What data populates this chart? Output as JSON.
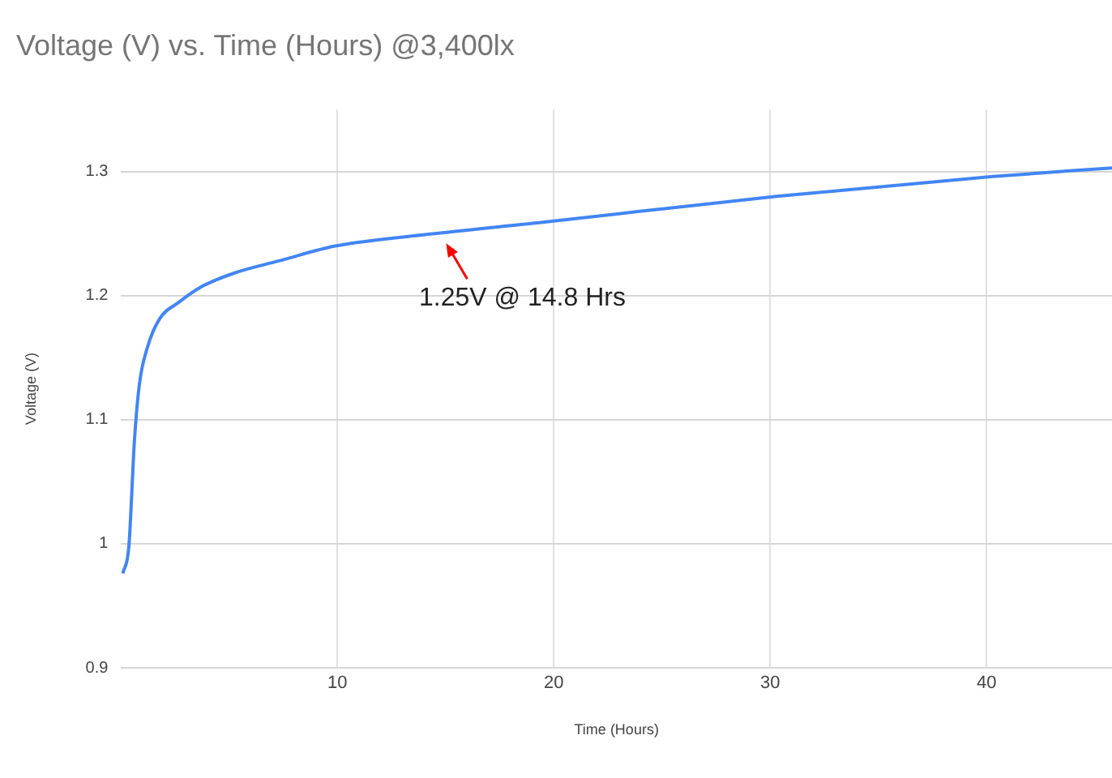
{
  "chart_data": {
    "type": "line",
    "title": "Voltage (V) vs. Time (Hours) @3,400lx",
    "xlabel": "Time (Hours)",
    "ylabel": "Voltage (V)",
    "x": [
      0.08,
      0.36,
      0.62,
      0.85,
      1.23,
      1.77,
      2.7,
      3.7,
      5.2,
      7.3,
      9.9,
      14.5,
      19.4,
      30.3,
      40.3,
      45.8
    ],
    "series": [
      {
        "color": "#4285f4",
        "values": [
          0.976,
          0.998,
          1.084,
          1.129,
          1.159,
          1.181,
          1.195,
          1.207,
          1.218,
          1.228,
          1.24,
          1.25,
          1.259,
          1.28,
          1.296,
          1.303
        ]
      }
    ],
    "xlim": [
      0,
      45.8
    ],
    "xticks": [
      10,
      20,
      30,
      40
    ],
    "ylim": [
      0.9,
      1.35
    ],
    "yticks": [
      0.9,
      1,
      1.1,
      1.2,
      1.3
    ],
    "annotations": [
      {
        "text": "1.25V @ 14.8 Hrs",
        "x": 14.8,
        "y": 1.25
      }
    ],
    "grid": true,
    "legend": false,
    "marker": "none",
    "line_style": "solid"
  }
}
